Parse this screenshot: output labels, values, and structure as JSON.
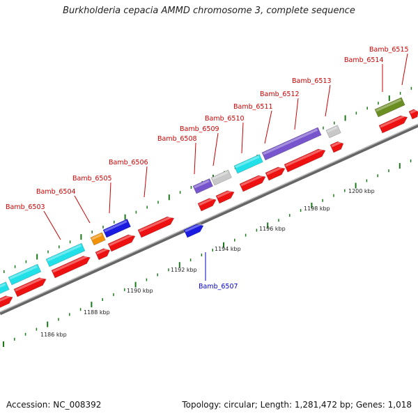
{
  "title": "Burkholderia cepacia AMMD chromosome 3, complete sequence",
  "footer": {
    "accession": "Accession: NC_008392",
    "summary": "Topology: circular; Length: 1,281,472 bp; Genes: 1,018"
  },
  "scale": {
    "tick_labels": [
      "1186 kbp",
      "1188 kbp",
      "1190 kbp",
      "1192 kbp",
      "1194 kbp",
      "1196 kbp",
      "1198 kbp",
      "1200 kbp"
    ],
    "tick_color": "#1a7a1a"
  },
  "colors": {
    "label_forward": "#cc0000",
    "label_reverse": "#0000cc",
    "backbone": "#888888"
  },
  "genes": [
    {
      "name": "Bamb_6503"
    },
    {
      "name": "Bamb_6504"
    },
    {
      "name": "Bamb_6505"
    },
    {
      "name": "Bamb_6506"
    },
    {
      "name": "Bamb_6507"
    },
    {
      "name": "Bamb_6508"
    },
    {
      "name": "Bamb_6509"
    },
    {
      "name": "Bamb_6510"
    },
    {
      "name": "Bamb_6511"
    },
    {
      "name": "Bamb_6512"
    },
    {
      "name": "Bamb_6513"
    },
    {
      "name": "Bamb_6514"
    },
    {
      "name": "Bamb_6515"
    }
  ]
}
